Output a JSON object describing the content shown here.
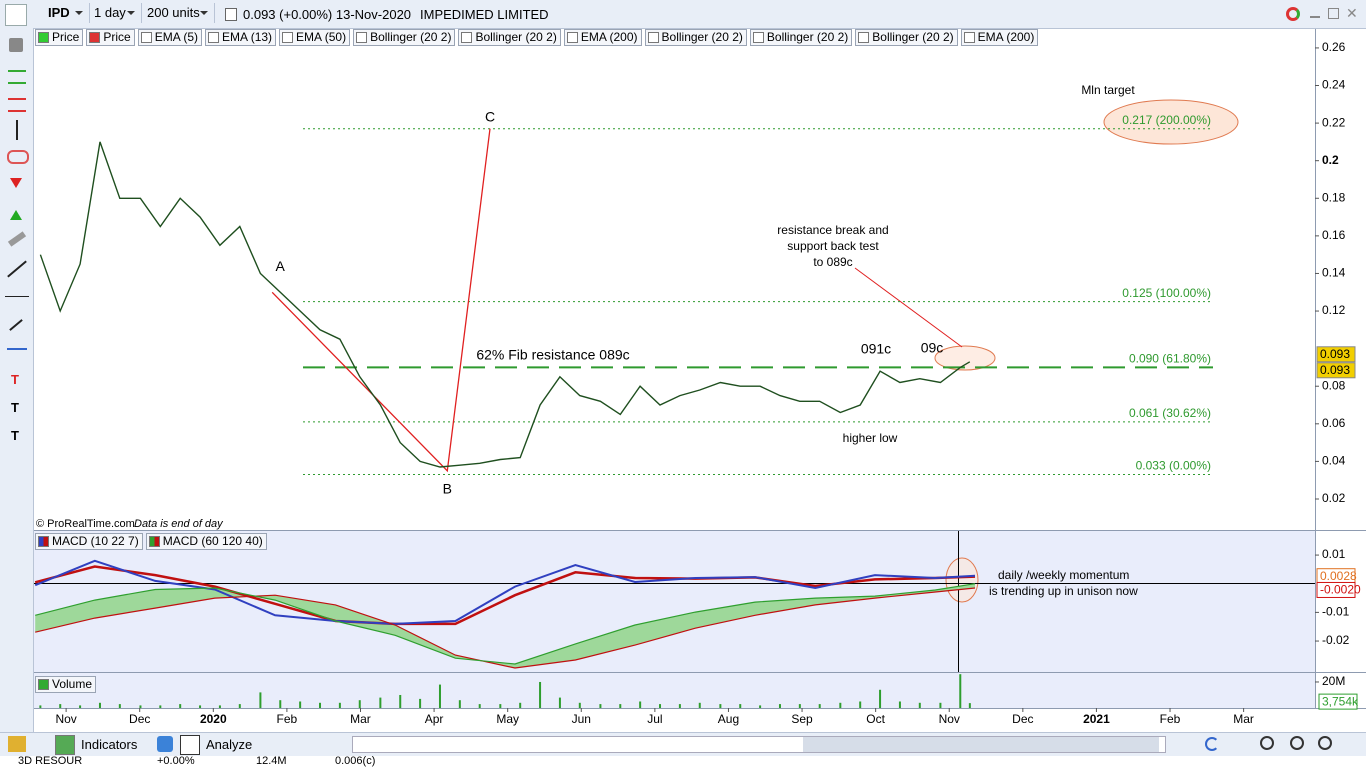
{
  "toolbar": {
    "ticker": "IPD",
    "period": "1 day",
    "units": "200 units",
    "quote": "0.093 (+0.00%) 13-Nov-2020",
    "name": "IMPEDIMED LIMITED"
  },
  "indicator_tabs": [
    "Price",
    "EMA (5)",
    "EMA (13)",
    "EMA (50)",
    "Bollinger (20 2)",
    "Bollinger (20 2)",
    "EMA (200)",
    "Bollinger (20 2)",
    "Bollinger (20 2)",
    "Bollinger (20 2)",
    "EMA (200)"
  ],
  "source_note": "© ProRealTime.com",
  "data_note": "Data is end of day",
  "annotations": {
    "target": "Mln target",
    "resistance": [
      "resistance break and",
      "support back test",
      "to 089c"
    ],
    "fib_resistance": "62% Fib resistance 089c",
    "peak1": "091c",
    "peak2": "09c",
    "higher_low": "higher low",
    "momentum": [
      "daily /weekly momentum",
      "is trending up in unison now"
    ]
  },
  "chart_data": [
    {
      "type": "line",
      "x": [
        0.65,
        0.92,
        1.19,
        1.46,
        1.73,
        2.01,
        2.28,
        2.55,
        2.82,
        3.09,
        3.36,
        3.64,
        3.91,
        4.18,
        4.45,
        4.72,
        4.99,
        5.27,
        5.54,
        5.81,
        6.08,
        6.35,
        6.62,
        6.9,
        7.17,
        7.44,
        7.71,
        7.98,
        8.26,
        8.53,
        8.8,
        9.07,
        9.34,
        9.61,
        9.89,
        10.16,
        10.43,
        10.7,
        10.97,
        11.24,
        11.52,
        11.79,
        12.06,
        12.33,
        12.6,
        12.88,
        13.15,
        13.28
      ],
      "series": [
        {
          "name": "Price",
          "color": "#1f4f1f",
          "values": [
            0.15,
            0.12,
            0.145,
            0.21,
            0.18,
            0.18,
            0.165,
            0.18,
            0.17,
            0.155,
            0.165,
            0.14,
            0.13,
            0.12,
            0.11,
            0.105,
            0.085,
            0.07,
            0.05,
            0.04,
            0.037,
            0.038,
            0.039,
            0.041,
            0.042,
            0.07,
            0.085,
            0.075,
            0.072,
            0.065,
            0.08,
            0.07,
            0.075,
            0.078,
            0.082,
            0.08,
            0.08,
            0.075,
            0.072,
            0.072,
            0.066,
            0.07,
            0.088,
            0.082,
            0.084,
            0.082,
            0.09,
            0.093
          ]
        }
      ],
      "xlim": [
        0.55,
        17.97
      ],
      "ylim": [
        0.0035,
        0.2706
      ],
      "yticks": [
        0.02,
        0.04,
        0.06,
        0.08,
        0.12,
        0.14,
        0.16,
        0.18,
        0.2,
        0.22,
        0.24,
        0.26
      ],
      "price_boxes": [
        0.093,
        0.093
      ],
      "fib_levels": [
        {
          "value": 0.217,
          "label": "0.217 (200.00%)"
        },
        {
          "value": 0.125,
          "label": "0.125 (100.00%)"
        },
        {
          "value": 0.09,
          "label": "0.090 (61.80%)"
        },
        {
          "value": 0.061,
          "label": "0.061 (30.62%)"
        },
        {
          "value": 0.033,
          "label": "0.033 (0.00%)"
        }
      ],
      "abc": {
        "labels": [
          "A",
          "B",
          "C"
        ],
        "x": [
          3.8,
          6.18,
          6.76
        ],
        "values": [
          0.13,
          0.035,
          0.217
        ]
      }
    },
    {
      "type": "line",
      "x": [
        0.58,
        1.39,
        2.21,
        3.02,
        3.84,
        4.66,
        5.47,
        6.29,
        7.1,
        7.92,
        8.73,
        9.55,
        10.36,
        11.18,
        11.99,
        12.81,
        13.35
      ],
      "series": [
        {
          "name": "MACD (10 22 7)",
          "color": "#3040c0",
          "signal_color": "#c01010",
          "values": [
            -0.0005,
            0.008,
            0.001,
            -0.002,
            -0.011,
            -0.013,
            -0.014,
            -0.013,
            -0.001,
            0.0065,
            0.0006,
            0.002,
            0.0023,
            -0.0015,
            0.003,
            0.002,
            0.0028
          ],
          "signal_values": [
            0.0005,
            0.006,
            0.003,
            -0.001,
            -0.007,
            -0.013,
            -0.014,
            -0.014,
            -0.004,
            0.004,
            0.002,
            0.0018,
            0.0022,
            -0.0008,
            0.0015,
            0.002,
            0.0025
          ]
        },
        {
          "name": "MACD (60 120 40)",
          "color": "#2f9f2f",
          "signal_color": "#c01010",
          "values": [
            -0.011,
            -0.0057,
            -0.002,
            -0.0015,
            -0.0057,
            -0.013,
            -0.018,
            -0.026,
            -0.028,
            -0.021,
            -0.0144,
            -0.0099,
            -0.0064,
            -0.005,
            -0.0043,
            -0.0022,
            0
          ],
          "signal_values": [
            -0.0169,
            -0.012,
            -0.0085,
            -0.005,
            -0.004,
            -0.0074,
            -0.0144,
            -0.0249,
            -0.0294,
            -0.0266,
            -0.0214,
            -0.0155,
            -0.011,
            -0.0074,
            -0.005,
            -0.0029,
            -0.0015
          ]
        }
      ],
      "xlim": [
        0.55,
        17.97
      ],
      "ylim": [
        -0.0308,
        0.0184
      ],
      "yticks": [
        -0.02,
        -0.01,
        0.01
      ],
      "value_boxes": [
        0.0028,
        {
          "value": -0.002,
          "label": "-0.0020"
        }
      ]
    },
    {
      "type": "bar",
      "name": "Volume",
      "color": "#2e9e2e",
      "x": [
        0.65,
        0.92,
        1.19,
        1.46,
        1.73,
        2.01,
        2.28,
        2.55,
        2.82,
        3.09,
        3.36,
        3.64,
        3.91,
        4.18,
        4.45,
        4.72,
        4.99,
        5.27,
        5.54,
        5.81,
        6.08,
        6.35,
        6.62,
        6.9,
        7.17,
        7.44,
        7.71,
        7.98,
        8.26,
        8.53,
        8.8,
        9.07,
        9.34,
        9.61,
        9.89,
        10.16,
        10.43,
        10.7,
        10.97,
        11.24,
        11.52,
        11.79,
        12.06,
        12.33,
        12.6,
        12.88,
        13.15,
        13.28
      ],
      "values": [
        2,
        3,
        2,
        4,
        3,
        2,
        2,
        3,
        2,
        2,
        3,
        12,
        6,
        5,
        4,
        4,
        6,
        8,
        10,
        7,
        18,
        6,
        3,
        3,
        4,
        20,
        8,
        4,
        3,
        3,
        5,
        3,
        3,
        4,
        3,
        3,
        2,
        3,
        3,
        3,
        4,
        5,
        14,
        5,
        4,
        4,
        26,
        3.754
      ],
      "xlim": [
        0.55,
        17.97
      ],
      "ylim": [
        0,
        26.9
      ],
      "yticks": [
        {
          "value": 20,
          "label": "20M"
        }
      ],
      "last_box": {
        "value": 3.754,
        "label": "3,754k"
      },
      "xticks": [
        {
          "value": 1,
          "label": "Nov"
        },
        {
          "value": 2,
          "label": "Dec"
        },
        {
          "value": 3,
          "label": "2020"
        },
        {
          "value": 4,
          "label": "Feb"
        },
        {
          "value": 5,
          "label": "Mar"
        },
        {
          "value": 6,
          "label": "Apr"
        },
        {
          "value": 7,
          "label": "May"
        },
        {
          "value": 8,
          "label": "Jun"
        },
        {
          "value": 9,
          "label": "Jul"
        },
        {
          "value": 10,
          "label": "Aug"
        },
        {
          "value": 11,
          "label": "Sep"
        },
        {
          "value": 12,
          "label": "Oct"
        },
        {
          "value": 13,
          "label": "Nov"
        },
        {
          "value": 14,
          "label": "Dec"
        },
        {
          "value": 15,
          "label": "2021"
        },
        {
          "value": 16,
          "label": "Feb"
        },
        {
          "value": 17,
          "label": "Mar"
        }
      ]
    }
  ],
  "bottom_toolbar": {
    "indicators": "Indicators",
    "analyze": "Analyze"
  },
  "watchlist_row": [
    "3D RESOUR",
    "+0.00%",
    "12.4M",
    "0.006(c)"
  ]
}
